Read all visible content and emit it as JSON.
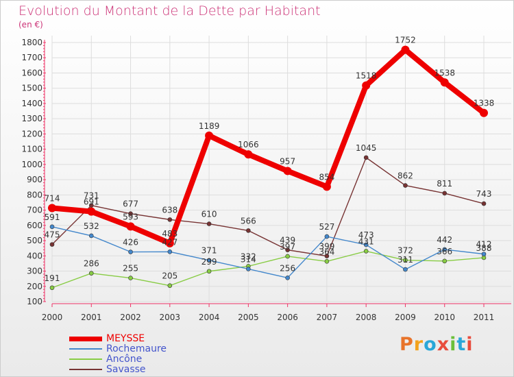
{
  "title": "Evolution du Montant de la Dette par Habitant",
  "unit_label": "(en €)",
  "logo_text": "Proxiti",
  "logo_colors": [
    "#e8732a",
    "#f3a21c",
    "#2aa7d8",
    "#e84c3d",
    "#6bbf3a",
    "#2aa7d8",
    "#e84c3d"
  ],
  "chart_data": {
    "type": "line",
    "x": [
      "2000",
      "2001",
      "2002",
      "2003",
      "2004",
      "2005",
      "2006",
      "2007",
      "2008",
      "2009",
      "2010",
      "2011"
    ],
    "ylim": [
      100,
      1800
    ],
    "yticks": [
      "100",
      "200",
      "300",
      "400",
      "500",
      "600",
      "700",
      "800",
      "900",
      "1000",
      "1100",
      "1200",
      "1300",
      "1400",
      "1500",
      "1600",
      "1700",
      "1800"
    ],
    "legend_position": "bottom-left",
    "series": [
      {
        "name": "MEYSSE",
        "color": "#ee0000",
        "values": [
          714,
          691,
          593,
          483,
          1189,
          1066,
          957,
          854,
          1518,
          1752,
          1538,
          1338
        ]
      },
      {
        "name": "Rochemaure",
        "color": "#4488cc",
        "values": [
          591,
          532,
          426,
          427,
          371,
          314,
          256,
          527,
          473,
          311,
          442,
          412
        ]
      },
      {
        "name": "Ancône",
        "color": "#88cc44",
        "values": [
          191,
          286,
          255,
          205,
          299,
          332,
          397,
          364,
          431,
          372,
          366,
          388
        ]
      },
      {
        "name": "Savasse",
        "color": "#773333",
        "values": [
          475,
          731,
          677,
          638,
          610,
          566,
          439,
          399,
          1045,
          862,
          811,
          743
        ]
      }
    ],
    "point_labels": [
      [
        "714",
        "691",
        "593",
        "483",
        "1189",
        "1066",
        "957",
        "854",
        "1518",
        "1752",
        "1538",
        "1338"
      ],
      [
        "591",
        "532",
        "426",
        "427",
        "371",
        "314",
        "256",
        "527",
        "473",
        "311",
        "442",
        "412"
      ],
      [
        "191",
        "286",
        "255",
        "205",
        "299",
        "332",
        "397",
        "364",
        "431",
        "372",
        "366",
        "388"
      ],
      [
        "475",
        "731",
        "677",
        "638",
        "610",
        "566",
        "439",
        "399",
        "1045",
        "862",
        "811",
        "743"
      ]
    ]
  }
}
